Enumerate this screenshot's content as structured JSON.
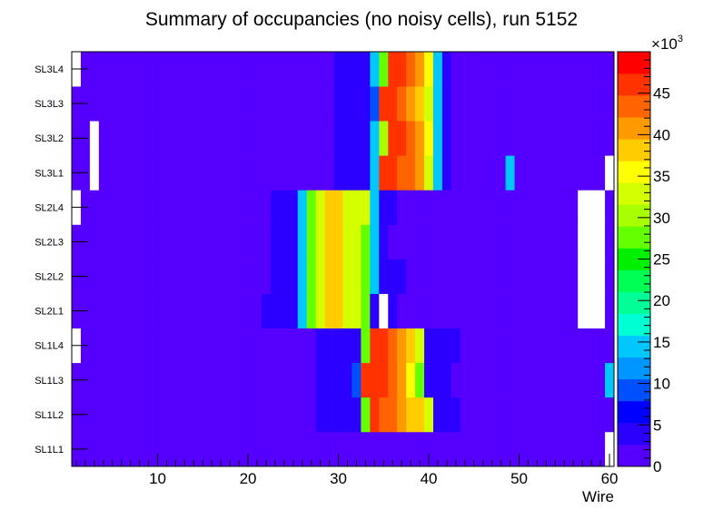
{
  "chart_data": {
    "type": "heatmap",
    "title": "Summary of occupancies (no noisy cells), run 5152",
    "xlabel": "Wire",
    "ylabel": "",
    "x_range": [
      0.5,
      60.5
    ],
    "x_ticks": [
      10,
      20,
      30,
      40,
      50,
      60
    ],
    "y_categories": [
      "SL1L1",
      "SL1L2",
      "SL1L3",
      "SL1L4",
      "SL2L1",
      "SL2L2",
      "SL2L3",
      "SL2L4",
      "SL3L1",
      "SL3L2",
      "SL3L3",
      "SL3L4"
    ],
    "z_range": [
      0,
      50000
    ],
    "z_multiplier_label": "×10",
    "z_multiplier_exponent": "3",
    "z_ticks": [
      0,
      5,
      10,
      15,
      20,
      25,
      30,
      35,
      40,
      45
    ],
    "palette": [
      "#5500ff",
      "#2c00ff",
      "#0000ff",
      "#0050ff",
      "#0096ff",
      "#00c8ff",
      "#00ffd2",
      "#00ff96",
      "#00ff55",
      "#00f000",
      "#64ff00",
      "#a8ff00",
      "#d4ff00",
      "#ffff00",
      "#ffcc00",
      "#ff9900",
      "#ff6400",
      "#ff3200",
      "#ff0000"
    ],
    "empty_color": "#ffffff",
    "rows": [
      {
        "layer": "SL1L1",
        "values": [
          2000,
          2000,
          2000,
          2000,
          2000,
          2000,
          2000,
          2000,
          2000,
          2000,
          2000,
          2000,
          2000,
          2000,
          2000,
          2000,
          2000,
          2000,
          2000,
          2000,
          2000,
          2000,
          2000,
          2000,
          2000,
          2000,
          2000,
          2000,
          2000,
          2000,
          2000,
          2000,
          2000,
          2000,
          2000,
          2000,
          2000,
          2000,
          2000,
          2000,
          2000,
          2000,
          2000,
          2000,
          2000,
          2000,
          2000,
          2000,
          2000,
          2000,
          2000,
          2000,
          2000,
          2000,
          2000,
          2000,
          2000,
          2000,
          2000,
          0
        ]
      },
      {
        "layer": "SL1L2",
        "values": [
          2000,
          2000,
          2000,
          2000,
          2000,
          2000,
          2000,
          2000,
          2000,
          2000,
          2000,
          2000,
          2000,
          2000,
          2000,
          2000,
          2000,
          2000,
          2000,
          2000,
          2000,
          2000,
          2000,
          2000,
          2000,
          2000,
          2000,
          5000,
          5000,
          5000,
          5000,
          5000,
          28000,
          46000,
          43000,
          43000,
          40000,
          38000,
          37000,
          32000,
          5000,
          5000,
          5000,
          2000,
          2000,
          2000,
          2000,
          2000,
          2000,
          2000,
          2000,
          2000,
          2000,
          2000,
          2000,
          2000,
          2000,
          2000,
          2000,
          2000
        ]
      },
      {
        "layer": "SL1L3",
        "values": [
          2000,
          2000,
          2000,
          2000,
          2000,
          2000,
          2000,
          2000,
          2000,
          2000,
          2000,
          2000,
          2000,
          2000,
          2000,
          2000,
          2000,
          2000,
          2000,
          2000,
          2000,
          2000,
          2000,
          2000,
          2000,
          2000,
          2000,
          5000,
          5000,
          5000,
          5000,
          8000,
          46000,
          46000,
          46000,
          43000,
          40000,
          35000,
          28000,
          5000,
          5000,
          5000,
          2000,
          2000,
          2000,
          2000,
          2000,
          2000,
          2000,
          2000,
          2000,
          2000,
          2000,
          2000,
          2000,
          2000,
          2000,
          2000,
          2000,
          15000
        ]
      },
      {
        "layer": "SL1L4",
        "values": [
          0,
          2000,
          2000,
          2000,
          2000,
          2000,
          2000,
          2000,
          2000,
          2000,
          2000,
          2000,
          2000,
          2000,
          2000,
          2000,
          2000,
          2000,
          2000,
          2000,
          2000,
          2000,
          2000,
          2000,
          2000,
          2000,
          2000,
          5000,
          5000,
          5000,
          5000,
          5000,
          28000,
          46000,
          46000,
          43000,
          40000,
          37000,
          32000,
          5000,
          5000,
          5000,
          5000,
          2000,
          2000,
          2000,
          2000,
          2000,
          2000,
          2000,
          2000,
          2000,
          2000,
          2000,
          2000,
          2000,
          2000,
          2000,
          2000,
          2000
        ]
      },
      {
        "layer": "SL2L1",
        "values": [
          2000,
          2000,
          2000,
          2000,
          2000,
          2000,
          2000,
          2000,
          2000,
          2000,
          2000,
          2000,
          2000,
          2000,
          2000,
          2000,
          2000,
          2000,
          2000,
          2000,
          2000,
          5000,
          5000,
          5000,
          5000,
          15000,
          28000,
          33000,
          37000,
          37000,
          32000,
          32000,
          28000,
          5000,
          0,
          5000,
          2000,
          2000,
          2000,
          2000,
          2000,
          2000,
          2000,
          2000,
          2000,
          2000,
          2000,
          2000,
          2000,
          2000,
          2000,
          2000,
          2000,
          2000,
          2000,
          2000,
          0,
          0,
          0,
          2000
        ]
      },
      {
        "layer": "SL2L2",
        "values": [
          2000,
          2000,
          2000,
          2000,
          2000,
          2000,
          2000,
          2000,
          2000,
          2000,
          2000,
          2000,
          2000,
          2000,
          2000,
          2000,
          2000,
          2000,
          2000,
          2000,
          2000,
          2000,
          5000,
          5000,
          5000,
          15000,
          28000,
          33000,
          37000,
          37000,
          32000,
          32000,
          28000,
          15000,
          5000,
          5000,
          5000,
          2000,
          2000,
          2000,
          2000,
          2000,
          2000,
          2000,
          2000,
          2000,
          2000,
          2000,
          2000,
          2000,
          2000,
          2000,
          2000,
          2000,
          2000,
          2000,
          0,
          0,
          0,
          2000
        ]
      },
      {
        "layer": "SL2L3",
        "values": [
          2000,
          2000,
          2000,
          2000,
          2000,
          2000,
          2000,
          2000,
          2000,
          2000,
          2000,
          2000,
          2000,
          2000,
          2000,
          2000,
          2000,
          2000,
          2000,
          2000,
          2000,
          2000,
          5000,
          5000,
          5000,
          15000,
          28000,
          33000,
          37000,
          37000,
          32000,
          32000,
          28000,
          15000,
          5000,
          2000,
          2000,
          2000,
          2000,
          2000,
          2000,
          2000,
          2000,
          2000,
          2000,
          2000,
          2000,
          2000,
          2000,
          2000,
          2000,
          2000,
          2000,
          2000,
          2000,
          2000,
          0,
          0,
          0,
          2000
        ]
      },
      {
        "layer": "SL2L4",
        "values": [
          0,
          2000,
          2000,
          2000,
          2000,
          2000,
          2000,
          2000,
          2000,
          2000,
          2000,
          2000,
          2000,
          2000,
          2000,
          2000,
          2000,
          2000,
          2000,
          2000,
          2000,
          2000,
          5000,
          5000,
          5000,
          15000,
          28000,
          33000,
          37000,
          37000,
          32000,
          32000,
          32000,
          15000,
          5000,
          5000,
          2000,
          2000,
          2000,
          2000,
          2000,
          2000,
          2000,
          2000,
          2000,
          2000,
          2000,
          2000,
          2000,
          2000,
          2000,
          2000,
          2000,
          2000,
          2000,
          2000,
          0,
          0,
          0,
          2000
        ]
      },
      {
        "layer": "SL3L1",
        "values": [
          2000,
          2000,
          0,
          2000,
          2000,
          2000,
          2000,
          2000,
          2000,
          2000,
          2000,
          2000,
          2000,
          2000,
          2000,
          2000,
          2000,
          2000,
          2000,
          2000,
          2000,
          2000,
          2000,
          2000,
          2000,
          2000,
          2000,
          2000,
          2000,
          5000,
          5000,
          5000,
          5000,
          15000,
          46000,
          46000,
          43000,
          43000,
          40000,
          32000,
          15000,
          5000,
          2000,
          2000,
          2000,
          2000,
          2000,
          2000,
          15000,
          2000,
          2000,
          2000,
          2000,
          2000,
          2000,
          2000,
          2000,
          2000,
          2000,
          0
        ]
      },
      {
        "layer": "SL3L2",
        "values": [
          2000,
          2000,
          0,
          2000,
          2000,
          2000,
          2000,
          2000,
          2000,
          2000,
          2000,
          2000,
          2000,
          2000,
          2000,
          2000,
          2000,
          2000,
          2000,
          2000,
          2000,
          2000,
          2000,
          2000,
          2000,
          2000,
          2000,
          2000,
          2000,
          5000,
          5000,
          5000,
          5000,
          15000,
          30000,
          46000,
          46000,
          43000,
          40000,
          35000,
          15000,
          5000,
          2000,
          2000,
          2000,
          2000,
          2000,
          2000,
          2000,
          2000,
          2000,
          2000,
          2000,
          2000,
          2000,
          2000,
          2000,
          2000,
          2000,
          2000
        ]
      },
      {
        "layer": "SL3L3",
        "values": [
          2000,
          2000,
          2000,
          2000,
          2000,
          2000,
          2000,
          2000,
          2000,
          2000,
          2000,
          2000,
          2000,
          2000,
          2000,
          2000,
          2000,
          2000,
          2000,
          2000,
          2000,
          2000,
          2000,
          2000,
          2000,
          2000,
          2000,
          2000,
          2000,
          5000,
          5000,
          5000,
          5000,
          8000,
          46000,
          46000,
          43000,
          40000,
          37000,
          32000,
          15000,
          5000,
          2000,
          2000,
          2000,
          2000,
          2000,
          2000,
          2000,
          2000,
          2000,
          2000,
          2000,
          2000,
          2000,
          2000,
          2000,
          2000,
          2000,
          2000
        ]
      },
      {
        "layer": "SL3L4",
        "values": [
          0,
          2000,
          2000,
          2000,
          2000,
          2000,
          2000,
          2000,
          2000,
          2000,
          2000,
          2000,
          2000,
          2000,
          2000,
          2000,
          2000,
          2000,
          2000,
          2000,
          2000,
          2000,
          2000,
          2000,
          2000,
          2000,
          2000,
          2000,
          2000,
          5000,
          5000,
          5000,
          5000,
          15000,
          28000,
          46000,
          46000,
          43000,
          40000,
          35000,
          15000,
          5000,
          2000,
          2000,
          2000,
          2000,
          2000,
          2000,
          2000,
          2000,
          2000,
          2000,
          2000,
          2000,
          2000,
          2000,
          2000,
          2000,
          2000,
          2000
        ]
      }
    ]
  }
}
